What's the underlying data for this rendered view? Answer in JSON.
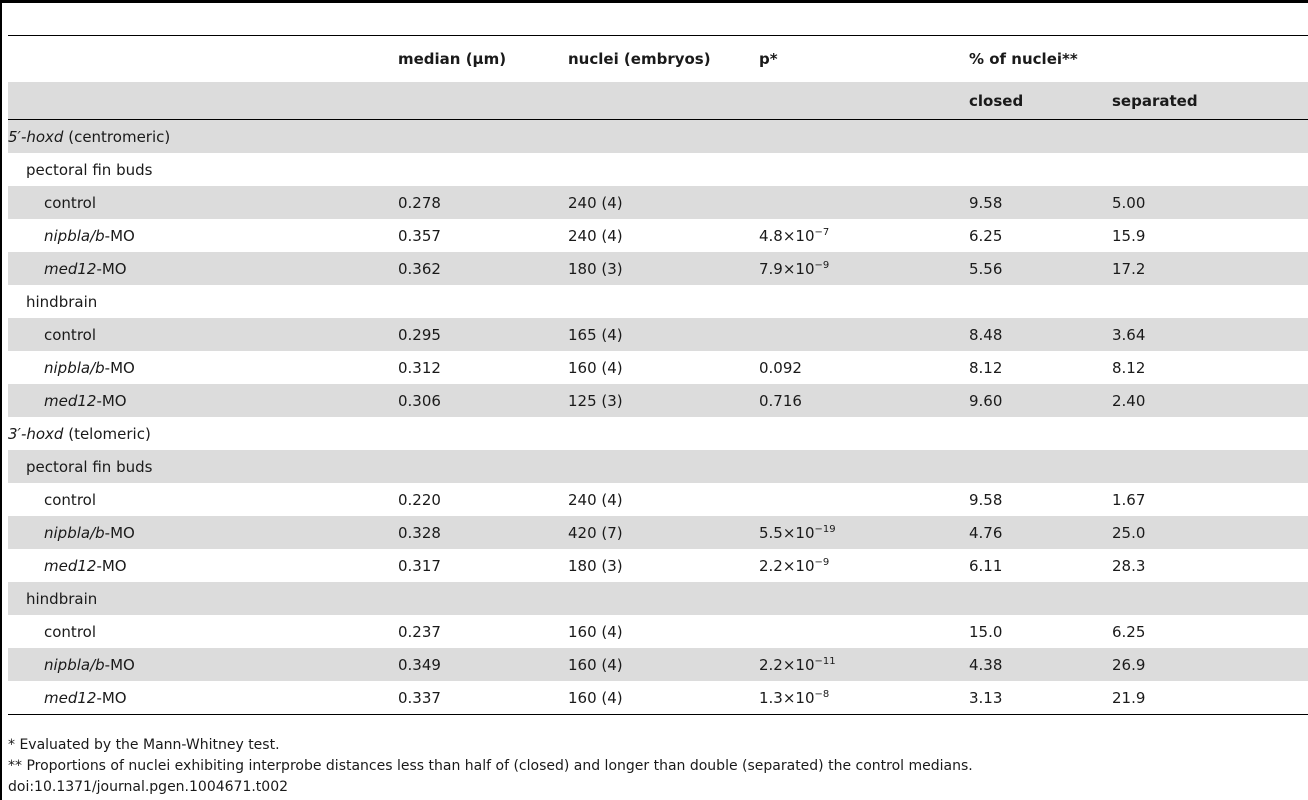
{
  "headers": {
    "median": "median (μm)",
    "nuclei": "nuclei (embryos)",
    "p": "p*",
    "pct": "% of nuclei**",
    "closed": "closed",
    "separated": "separated"
  },
  "groups": [
    {
      "label_italic": "5′-hoxd",
      "label_rest": " (centromeric)",
      "tissues": [
        {
          "label": "pectoral fin buds",
          "rows": [
            {
              "italic": "",
              "rest": "control",
              "median": "0.278",
              "nuclei": "240 (4)",
              "p_mant": "",
              "p_exp": "",
              "closed": "9.58",
              "separated": "5.00"
            },
            {
              "italic": "nipbla/b",
              "rest": "-MO",
              "median": "0.357",
              "nuclei": "240 (4)",
              "p_mant": "4.8×10",
              "p_exp": "−7",
              "closed": "6.25",
              "separated": "15.9"
            },
            {
              "italic": "med12",
              "rest": "-MO",
              "median": "0.362",
              "nuclei": "180 (3)",
              "p_mant": "7.9×10",
              "p_exp": "−9",
              "closed": "5.56",
              "separated": "17.2"
            }
          ]
        },
        {
          "label": "hindbrain",
          "rows": [
            {
              "italic": "",
              "rest": "control",
              "median": "0.295",
              "nuclei": "165 (4)",
              "p_mant": "",
              "p_exp": "",
              "closed": "8.48",
              "separated": "3.64"
            },
            {
              "italic": "nipbla/b",
              "rest": "-MO",
              "median": "0.312",
              "nuclei": "160 (4)",
              "p_mant": "0.092",
              "p_exp": "",
              "closed": "8.12",
              "separated": "8.12"
            },
            {
              "italic": "med12",
              "rest": "-MO",
              "median": "0.306",
              "nuclei": "125 (3)",
              "p_mant": "0.716",
              "p_exp": "",
              "closed": "9.60",
              "separated": "2.40"
            }
          ]
        }
      ]
    },
    {
      "label_italic": "3′-hoxd",
      "label_rest": " (telomeric)",
      "tissues": [
        {
          "label": "pectoral fin buds",
          "rows": [
            {
              "italic": "",
              "rest": "control",
              "median": "0.220",
              "nuclei": "240 (4)",
              "p_mant": "",
              "p_exp": "",
              "closed": "9.58",
              "separated": "1.67"
            },
            {
              "italic": "nipbla/b",
              "rest": "-MO",
              "median": "0.328",
              "nuclei": "420 (7)",
              "p_mant": "5.5×10",
              "p_exp": "−19",
              "closed": "4.76",
              "separated": "25.0"
            },
            {
              "italic": "med12",
              "rest": "-MO",
              "median": "0.317",
              "nuclei": "180 (3)",
              "p_mant": "2.2×10",
              "p_exp": "−9",
              "closed": "6.11",
              "separated": "28.3"
            }
          ]
        },
        {
          "label": "hindbrain",
          "rows": [
            {
              "italic": "",
              "rest": "control",
              "median": "0.237",
              "nuclei": "160 (4)",
              "p_mant": "",
              "p_exp": "",
              "closed": "15.0",
              "separated": "6.25"
            },
            {
              "italic": "nipbla/b",
              "rest": "-MO",
              "median": "0.349",
              "nuclei": "160 (4)",
              "p_mant": "2.2×10",
              "p_exp": "−11",
              "closed": "4.38",
              "separated": "26.9"
            },
            {
              "italic": "med12",
              "rest": "-MO",
              "median": "0.337",
              "nuclei": "160 (4)",
              "p_mant": "1.3×10",
              "p_exp": "−8",
              "closed": "3.13",
              "separated": "21.9"
            }
          ]
        }
      ]
    }
  ],
  "footnotes": [
    "* Evaluated by the Mann-Whitney test.",
    "** Proportions of nuclei exhibiting interprobe distances less than half of (closed) and longer than double (separated) the control medians.",
    "doi:10.1371/journal.pgen.1004671.t002"
  ]
}
